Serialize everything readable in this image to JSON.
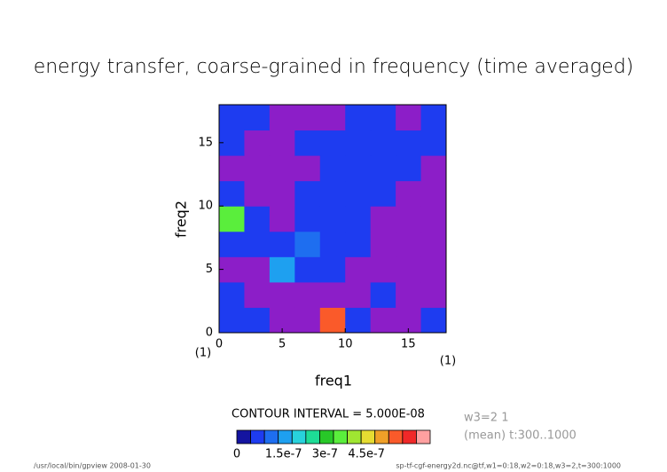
{
  "chart_data": {
    "type": "contour",
    "title": "energy transfer, coarse-grained in frequency (time averaged)",
    "xlabel": "freq1",
    "ylabel": "freq2",
    "x_unit": "(1)",
    "y_unit": "(1)",
    "x": [
      1,
      3,
      5,
      7,
      9,
      11,
      13,
      15,
      17
    ],
    "y": [
      1,
      3,
      5,
      7,
      9,
      11,
      13,
      15,
      17
    ],
    "z": [
      [
        7e-08,
        7e-08,
        -1e-08,
        -1e-08,
        5.5e-07,
        7e-08,
        -1e-08,
        -1e-08,
        7e-08
      ],
      [
        7e-08,
        -1e-08,
        -1e-08,
        -1e-08,
        -1e-08,
        -1e-08,
        7e-08,
        -1e-08,
        -1e-08
      ],
      [
        -1e-08,
        -1e-08,
        1.8e-07,
        7e-08,
        7e-08,
        -1e-08,
        -1e-08,
        -1e-08,
        -1e-08
      ],
      [
        7e-08,
        7e-08,
        7e-08,
        1.3e-07,
        7e-08,
        7e-08,
        -1e-08,
        -1e-08,
        -1e-08
      ],
      [
        3.5e-07,
        7e-08,
        -1e-08,
        7e-08,
        7e-08,
        7e-08,
        -1e-08,
        -1e-08,
        -1e-08
      ],
      [
        7e-08,
        -1e-08,
        -1e-08,
        7e-08,
        7e-08,
        7e-08,
        7e-08,
        -1e-08,
        -1e-08
      ],
      [
        -1e-08,
        -1e-08,
        -1e-08,
        -1e-08,
        7e-08,
        7e-08,
        7e-08,
        7e-08,
        -1e-08
      ],
      [
        7e-08,
        -1e-08,
        -1e-08,
        7e-08,
        7e-08,
        7e-08,
        7e-08,
        7e-08,
        7e-08
      ],
      [
        7e-08,
        7e-08,
        -1e-08,
        -1e-08,
        -1e-08,
        7e-08,
        7e-08,
        -1e-08,
        7e-08
      ]
    ],
    "xlim": [
      0,
      18
    ],
    "ylim": [
      0,
      18
    ],
    "xticks": [
      0,
      5,
      10,
      15
    ],
    "yticks": [
      0,
      5,
      10,
      15
    ],
    "levels": [
      0,
      5e-08,
      1e-07,
      1.5e-07,
      2e-07,
      2.5e-07,
      3e-07,
      3.5e-07,
      4e-07,
      4.5e-07,
      5e-07,
      5.5e-07,
      6e-07,
      6.5e-07,
      7e-07
    ],
    "colors": [
      "#1414a0",
      "#1e3cf0",
      "#1e6ef0",
      "#1ea0f0",
      "#28d2dc",
      "#1edc96",
      "#28c828",
      "#5aee3c",
      "#a0e632",
      "#e6dc32",
      "#f0a028",
      "#fa5a2a",
      "#f02828",
      "#ffa0a0"
    ],
    "below_color": "#8c1ec8",
    "colorbar_ticks": [
      0,
      1.5e-07,
      3e-07,
      4.5e-07
    ],
    "contour_interval_text": "CONTOUR INTERVAL = 5.000E-08",
    "annotations": [
      "w3=2 1",
      "(mean) t:300..1000"
    ],
    "footer_left": "/usr/local/bin/gpview  2008-01-30",
    "footer_right": "sp-tf-cgf-energy2d.nc@tf,w1=0:18,w2=0:18,w3=2,t=300:1000"
  }
}
